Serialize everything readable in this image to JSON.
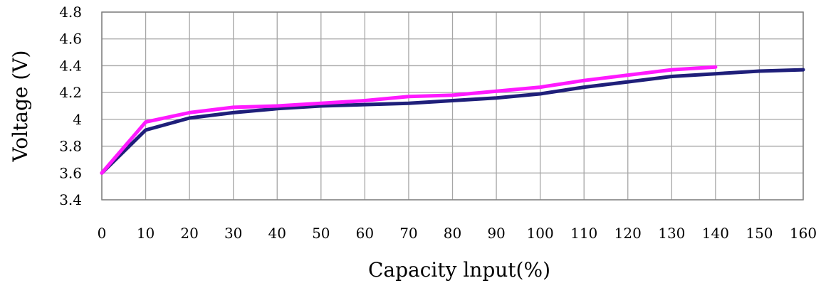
{
  "chart_data": {
    "type": "line",
    "xlabel": "Capacity lnput(%)",
    "ylabel": "Voltage (V)",
    "xlim": [
      0,
      160
    ],
    "ylim": [
      3.4,
      4.8
    ],
    "x_ticks": [
      0,
      10,
      20,
      30,
      40,
      50,
      60,
      70,
      80,
      90,
      100,
      110,
      120,
      130,
      140,
      150,
      160
    ],
    "y_ticks": [
      3.4,
      3.6,
      3.8,
      4,
      4.2,
      4.4,
      4.6,
      4.8
    ],
    "x_tick_labels": [
      "0",
      "10",
      "20",
      "30",
      "40",
      "50",
      "60",
      "70",
      "80",
      "90",
      "100",
      "110",
      "120",
      "130",
      "140",
      "150",
      "160"
    ],
    "y_tick_labels": [
      "3.4",
      "3.6",
      "3.8",
      "4",
      "4.2",
      "4.4",
      "4.6",
      "4.8"
    ],
    "grid": true,
    "series": [
      {
        "color": "#1f1f7a",
        "points": [
          [
            0,
            3.6
          ],
          [
            10,
            3.92
          ],
          [
            20,
            4.01
          ],
          [
            30,
            4.05
          ],
          [
            40,
            4.08
          ],
          [
            50,
            4.1
          ],
          [
            60,
            4.11
          ],
          [
            70,
            4.12
          ],
          [
            80,
            4.14
          ],
          [
            90,
            4.16
          ],
          [
            100,
            4.19
          ],
          [
            110,
            4.24
          ],
          [
            120,
            4.28
          ],
          [
            130,
            4.32
          ],
          [
            140,
            4.34
          ],
          [
            150,
            4.36
          ],
          [
            160,
            4.37
          ]
        ]
      },
      {
        "color": "#ff1aff",
        "points": [
          [
            0,
            3.6
          ],
          [
            10,
            3.98
          ],
          [
            20,
            4.05
          ],
          [
            30,
            4.09
          ],
          [
            40,
            4.1
          ],
          [
            50,
            4.12
          ],
          [
            60,
            4.14
          ],
          [
            70,
            4.17
          ],
          [
            80,
            4.18
          ],
          [
            90,
            4.21
          ],
          [
            100,
            4.24
          ],
          [
            110,
            4.29
          ],
          [
            120,
            4.33
          ],
          [
            130,
            4.37
          ],
          [
            140,
            4.39
          ]
        ]
      }
    ]
  }
}
